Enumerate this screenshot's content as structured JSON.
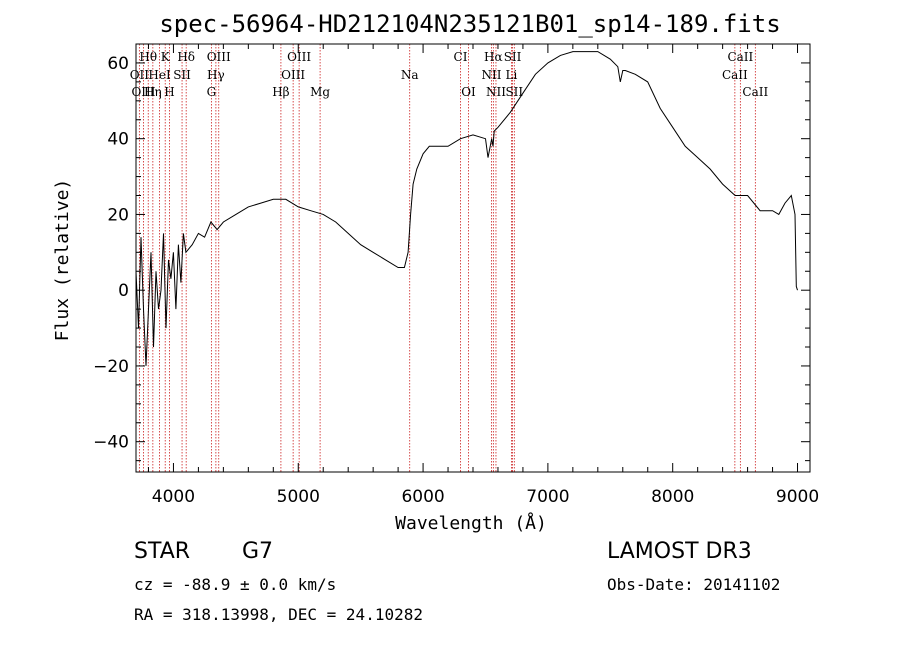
{
  "chart_data": {
    "type": "line",
    "title": "spec-56964-HD212104N235121B01_sp14-189.fits",
    "xlabel": "Wavelength (Å)",
    "ylabel": "Flux (relative)",
    "xlim": [
      3700,
      9100
    ],
    "ylim": [
      -48,
      65
    ],
    "xticks": [
      4000,
      5000,
      6000,
      7000,
      8000,
      9000
    ],
    "yticks": [
      -40,
      -20,
      0,
      20,
      40,
      60
    ],
    "spectrum": {
      "x": [
        3700,
        3720,
        3740,
        3760,
        3780,
        3800,
        3820,
        3840,
        3860,
        3880,
        3900,
        3920,
        3940,
        3960,
        3980,
        4000,
        4020,
        4040,
        4060,
        4080,
        4100,
        4150,
        4200,
        4250,
        4300,
        4350,
        4400,
        4500,
        4600,
        4700,
        4800,
        4900,
        5000,
        5100,
        5200,
        5300,
        5400,
        5500,
        5600,
        5700,
        5800,
        5850,
        5880,
        5900,
        5920,
        5950,
        6000,
        6050,
        6100,
        6200,
        6300,
        6400,
        6500,
        6520,
        6550,
        6560,
        6570,
        6600,
        6700,
        6800,
        6900,
        7000,
        7100,
        7200,
        7300,
        7400,
        7500,
        7560,
        7580,
        7600,
        7620,
        7700,
        7800,
        7900,
        8000,
        8100,
        8200,
        8300,
        8400,
        8500,
        8600,
        8700,
        8800,
        8850,
        8900,
        8950,
        8980,
        8990,
        9000
      ],
      "y": [
        5,
        -10,
        14,
        -5,
        -20,
        -5,
        10,
        -15,
        5,
        -5,
        0,
        15,
        -10,
        8,
        3,
        10,
        -5,
        12,
        2,
        15,
        10,
        12,
        15,
        14,
        18,
        16,
        18,
        20,
        22,
        23,
        24,
        24,
        22,
        21,
        20,
        18,
        15,
        12,
        10,
        8,
        6,
        6,
        10,
        20,
        28,
        32,
        36,
        38,
        38,
        38,
        40,
        41,
        40,
        35,
        40,
        38,
        42,
        43,
        47,
        52,
        57,
        60,
        62,
        63,
        63,
        63,
        61,
        59,
        55,
        58,
        58,
        57,
        55,
        48,
        43,
        38,
        35,
        32,
        28,
        25,
        25,
        21,
        21,
        20,
        23,
        25,
        20,
        1,
        0
      ]
    },
    "lines": [
      {
        "label": "Hθ",
        "x": 3798
      },
      {
        "label": "K",
        "x": 3934
      },
      {
        "label": "Hδ",
        "x": 4102
      },
      {
        "label": "OIII",
        "x": 4363
      },
      {
        "label": "OIII",
        "x": 5007
      },
      {
        "label": "CI",
        "x": 6300
      },
      {
        "label": "Hα",
        "x": 6563
      },
      {
        "label": "SII",
        "x": 6717
      },
      {
        "label": "CaII",
        "x": 8542
      },
      {
        "label": "OII",
        "x": 3727
      },
      {
        "label": "HeI",
        "x": 3889
      },
      {
        "label": "SII",
        "x": 4069
      },
      {
        "label": "Hγ",
        "x": 4340
      },
      {
        "label": "OIII",
        "x": 4959
      },
      {
        "label": "Na",
        "x": 5893
      },
      {
        "label": "NII",
        "x": 6548
      },
      {
        "label": "Li",
        "x": 6708
      },
      {
        "label": "CaII",
        "x": 8498
      },
      {
        "label": "OIII",
        "x": 3760
      },
      {
        "label": "Hη",
        "x": 3835
      },
      {
        "label": "H",
        "x": 3968
      },
      {
        "label": "G",
        "x": 4304
      },
      {
        "label": "Hβ",
        "x": 4861
      },
      {
        "label": "Mg",
        "x": 5175
      },
      {
        "label": "OI",
        "x": 6364
      },
      {
        "label": "NII",
        "x": 6584
      },
      {
        "label": "SII",
        "x": 6731
      },
      {
        "label": "CaII",
        "x": 8662
      }
    ]
  },
  "footer": {
    "object_class": "STAR",
    "subclass": "G7",
    "survey": "LAMOST DR3",
    "cz": "cz = -88.9 ± 0.0 km/s",
    "obs_date": "Obs-Date: 20141102",
    "coords": "RA = 318.13998, DEC =  24.10282"
  },
  "colors": {
    "spectrum": "#000000",
    "line_marker": "#cc2222"
  }
}
